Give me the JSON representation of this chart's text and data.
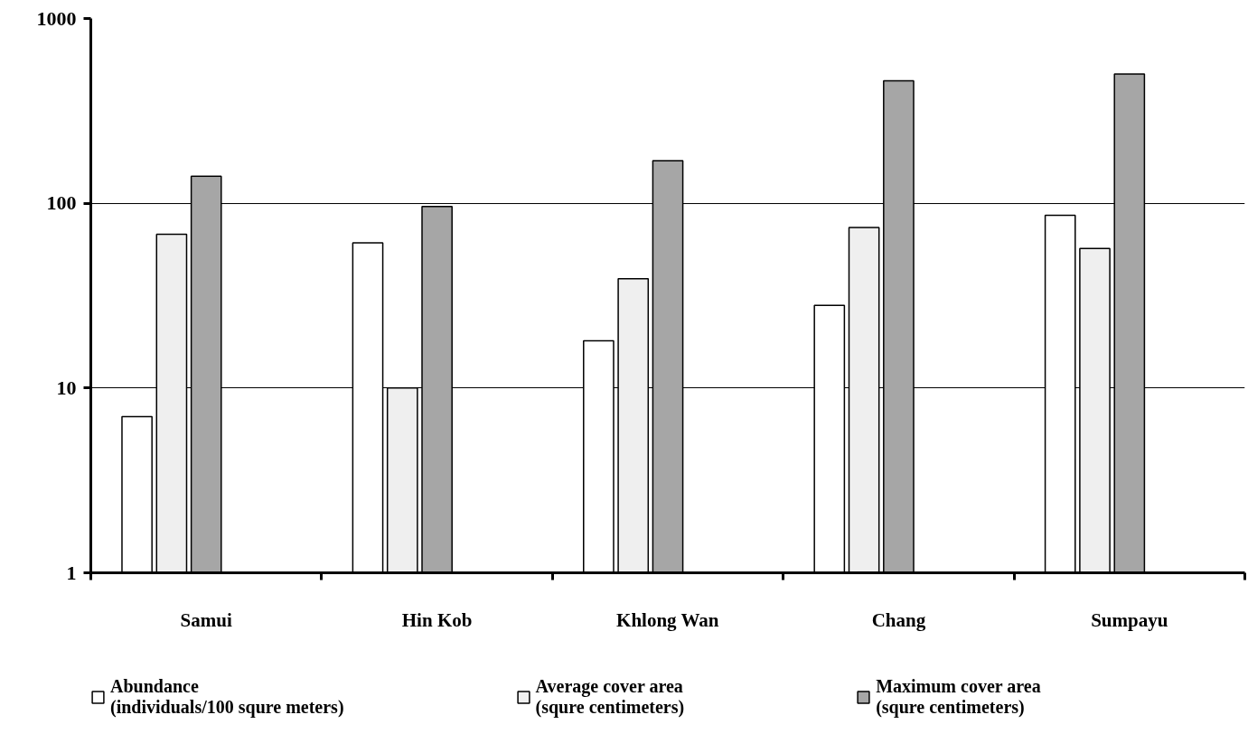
{
  "chart_data": {
    "type": "bar",
    "categories": [
      "Samui",
      "Hin Kob",
      "Khlong Wan",
      "Chang",
      "Sumpayu"
    ],
    "series": [
      {
        "name": "Abundance\n(individuals/100 squre meters)",
        "color": "#ffffff",
        "values": [
          7,
          61,
          18,
          28,
          86
        ]
      },
      {
        "name": "Average cover area\n(squre centimeters)",
        "color": "#efefef",
        "values": [
          68,
          10,
          39,
          74,
          57
        ]
      },
      {
        "name": "Maximum cover area\n(squre centimeters)",
        "color": "#a6a6a6",
        "values": [
          140,
          96,
          170,
          460,
          500
        ]
      }
    ],
    "log": true,
    "ylim": [
      1,
      1000
    ],
    "yticks": [
      1,
      10,
      100,
      1000
    ],
    "grid": "y",
    "legend": "bottom"
  }
}
